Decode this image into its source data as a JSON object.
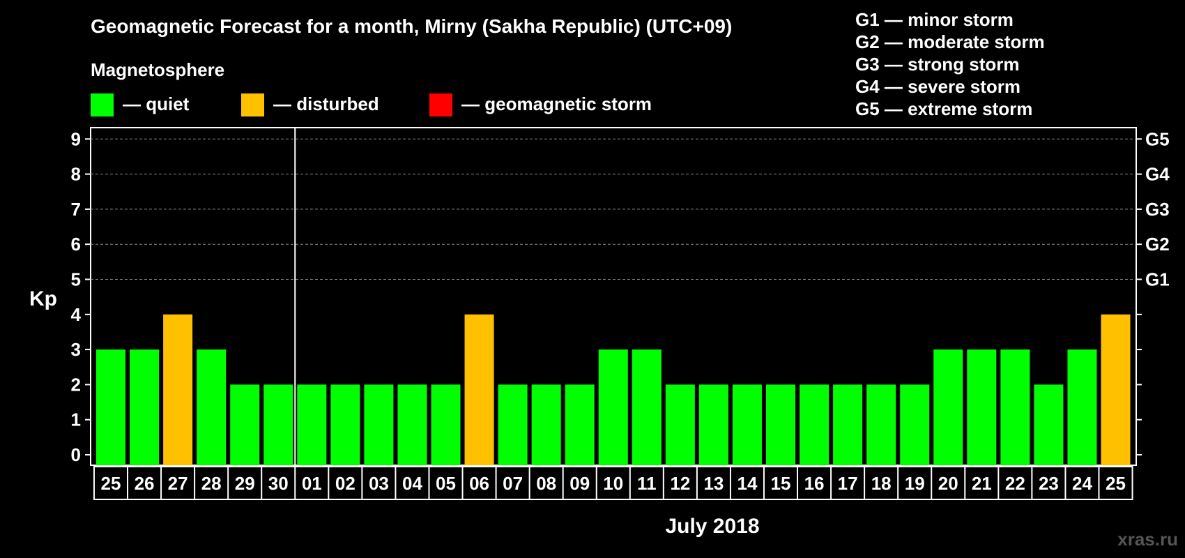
{
  "chart_data": {
    "type": "bar",
    "title": "Geomagnetic Forecast for a month, Mirny (Sakha Republic) (UTC+09)",
    "legend_title": "Magnetosphere",
    "legend": [
      {
        "label": "— quiet",
        "color": "#00ff00"
      },
      {
        "label": "— disturbed",
        "color": "#ffc000"
      },
      {
        "label": "— geomagnetic storm",
        "color": "#ff0000"
      }
    ],
    "storm_scale": [
      "G1 — minor storm",
      "G2 — moderate storm",
      "G3 — strong storm",
      "G4 — severe storm",
      "G5 — extreme storm"
    ],
    "ylabel": "Kp",
    "ylim": [
      0,
      9
    ],
    "y_ticks": [
      "0",
      "1",
      "2",
      "3",
      "4",
      "5",
      "6",
      "7",
      "8",
      "9"
    ],
    "right_ticks": [
      {
        "value": 5,
        "label": "G1"
      },
      {
        "value": 6,
        "label": "G2"
      },
      {
        "value": 7,
        "label": "G3"
      },
      {
        "value": 8,
        "label": "G4"
      },
      {
        "value": 9,
        "label": "G5"
      }
    ],
    "gridlines": [
      5,
      6,
      7,
      8,
      9
    ],
    "categories": [
      "25",
      "26",
      "27",
      "28",
      "29",
      "30",
      "01",
      "02",
      "03",
      "04",
      "05",
      "06",
      "07",
      "08",
      "09",
      "10",
      "11",
      "12",
      "13",
      "14",
      "15",
      "16",
      "17",
      "18",
      "19",
      "20",
      "21",
      "22",
      "23",
      "24",
      "25"
    ],
    "values": [
      3,
      3,
      4,
      3,
      2,
      2,
      2,
      2,
      2,
      2,
      2,
      4,
      2,
      2,
      2,
      3,
      3,
      2,
      2,
      2,
      2,
      2,
      2,
      2,
      2,
      3,
      3,
      3,
      2,
      3,
      4
    ],
    "month_divider_after_index": 5,
    "xlabel": "July 2018"
  },
  "watermark": "xras.ru"
}
